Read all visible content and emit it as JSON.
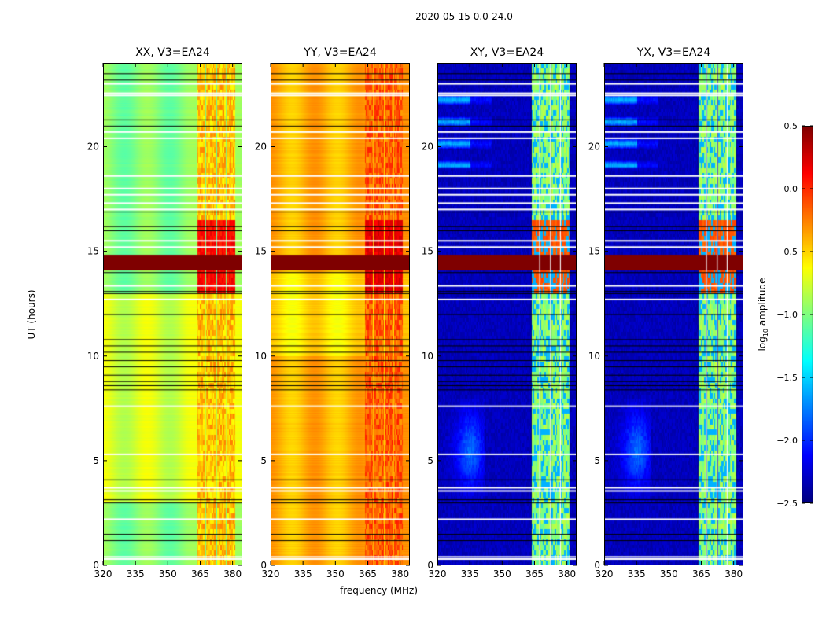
{
  "figure": {
    "suptitle": "2020-05-15 0.0-24.0",
    "ylabel": "UT (hours)",
    "xlabel": "frequency (MHz)",
    "colorbar_label_main": "log",
    "colorbar_label_sub": "10",
    "colorbar_label_rest": " amplitude"
  },
  "chart_data": {
    "type": "heatmap",
    "title": "2020-05-15 0.0-24.0",
    "xlabel": "frequency (MHz)",
    "ylabel": "UT (hours)",
    "xlim": [
      320,
      384.5
    ],
    "ylim": [
      0,
      24
    ],
    "xticks": [
      320,
      335,
      350,
      365,
      380
    ],
    "yticks": [
      0,
      5,
      10,
      15,
      20
    ],
    "colorbar": {
      "label": "log10 amplitude",
      "colormap": "jet",
      "range": [
        -2.5,
        0.5
      ],
      "ticks": [
        "0.5",
        "0.0",
        "−0.5",
        "−1.0",
        "−1.5",
        "−2.0",
        "−2.5"
      ],
      "tick_values": [
        0.5,
        0.0,
        -0.5,
        -1.0,
        -1.5,
        -2.0,
        -2.5
      ]
    },
    "subbands_MHz": [
      [
        363.5,
        367.2
      ],
      [
        367.6,
        372.2
      ],
      [
        372.6,
        376.8
      ],
      [
        377.2,
        381.2
      ]
    ],
    "rfi_strip_hours": [
      14.1,
      14.85
    ],
    "flagged_white_hours": [
      0.3,
      0.4,
      2.2,
      3.55,
      3.7,
      5.3,
      7.6,
      12.7,
      13.35,
      15.2,
      15.5,
      17.0,
      17.3,
      17.7,
      18.0,
      18.6,
      20.4,
      20.7,
      22.45,
      22.55,
      23.0
    ],
    "flagged_black_hours": [
      1.2,
      1.5,
      3.0,
      3.15,
      4.1,
      8.4,
      8.6,
      8.8,
      9.1,
      9.5,
      9.8,
      10.2,
      10.5,
      10.8,
      12.0,
      13.0,
      13.1,
      14.0,
      16.0,
      16.2,
      16.9,
      21.0,
      21.3,
      23.2,
      23.5
    ],
    "panels": [
      {
        "title": "XX, V3=EA24",
        "base_level": -1.0,
        "band_level": -0.45,
        "band_peak": 0.2
      },
      {
        "title": "YY, V3=EA24",
        "base_level": -0.4,
        "band_level": -0.15,
        "band_peak": 0.3
      },
      {
        "title": "XY, V3=EA24",
        "base_level": -2.4,
        "band_level": -1.0,
        "band_peak": 0.0
      },
      {
        "title": "YX, V3=EA24",
        "base_level": -2.4,
        "band_level": -1.0,
        "band_peak": 0.0
      }
    ]
  }
}
